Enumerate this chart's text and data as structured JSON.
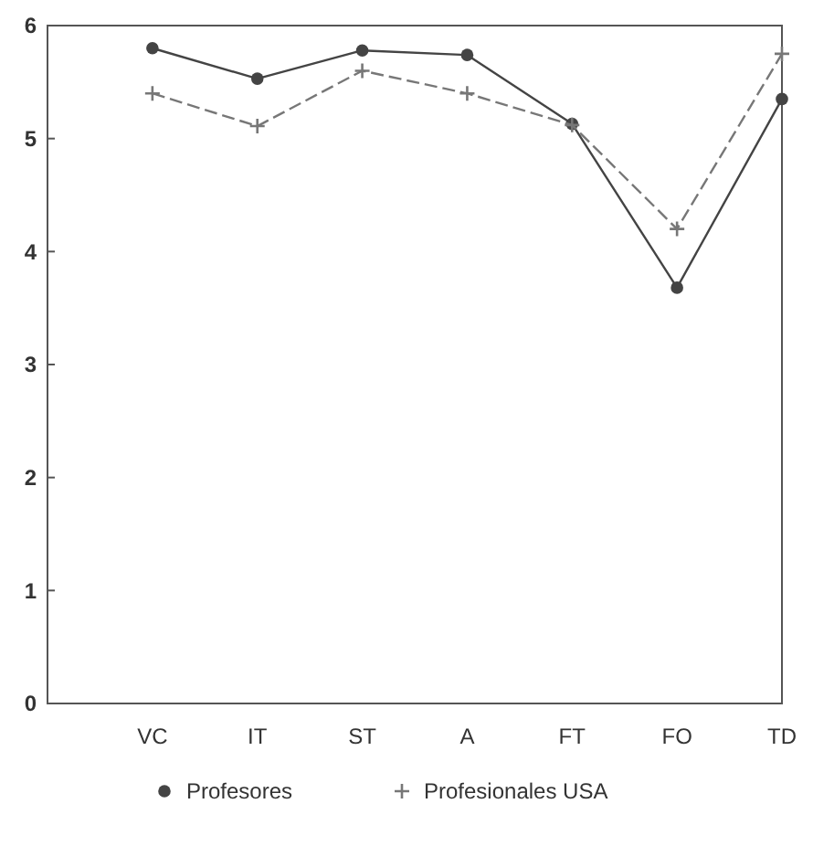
{
  "chart_data": {
    "type": "line",
    "categories": [
      "VC",
      "IT",
      "ST",
      "A",
      "FT",
      "FO",
      "TD"
    ],
    "series": [
      {
        "name": "Profesores",
        "color": "#444444",
        "marker": "circle",
        "line_style": "solid",
        "values": [
          5.8,
          5.53,
          5.78,
          5.74,
          5.13,
          3.68,
          5.35
        ]
      },
      {
        "name": "Profesionales USA",
        "color": "#777777",
        "marker": "cross",
        "line_style": "dashed",
        "values": [
          5.4,
          5.11,
          5.6,
          5.4,
          5.12,
          4.2,
          5.75
        ]
      }
    ],
    "ylim": [
      0,
      6
    ],
    "yticks": [
      0,
      1,
      2,
      3,
      4,
      5,
      6
    ],
    "grid": false,
    "legend": "bottom"
  }
}
